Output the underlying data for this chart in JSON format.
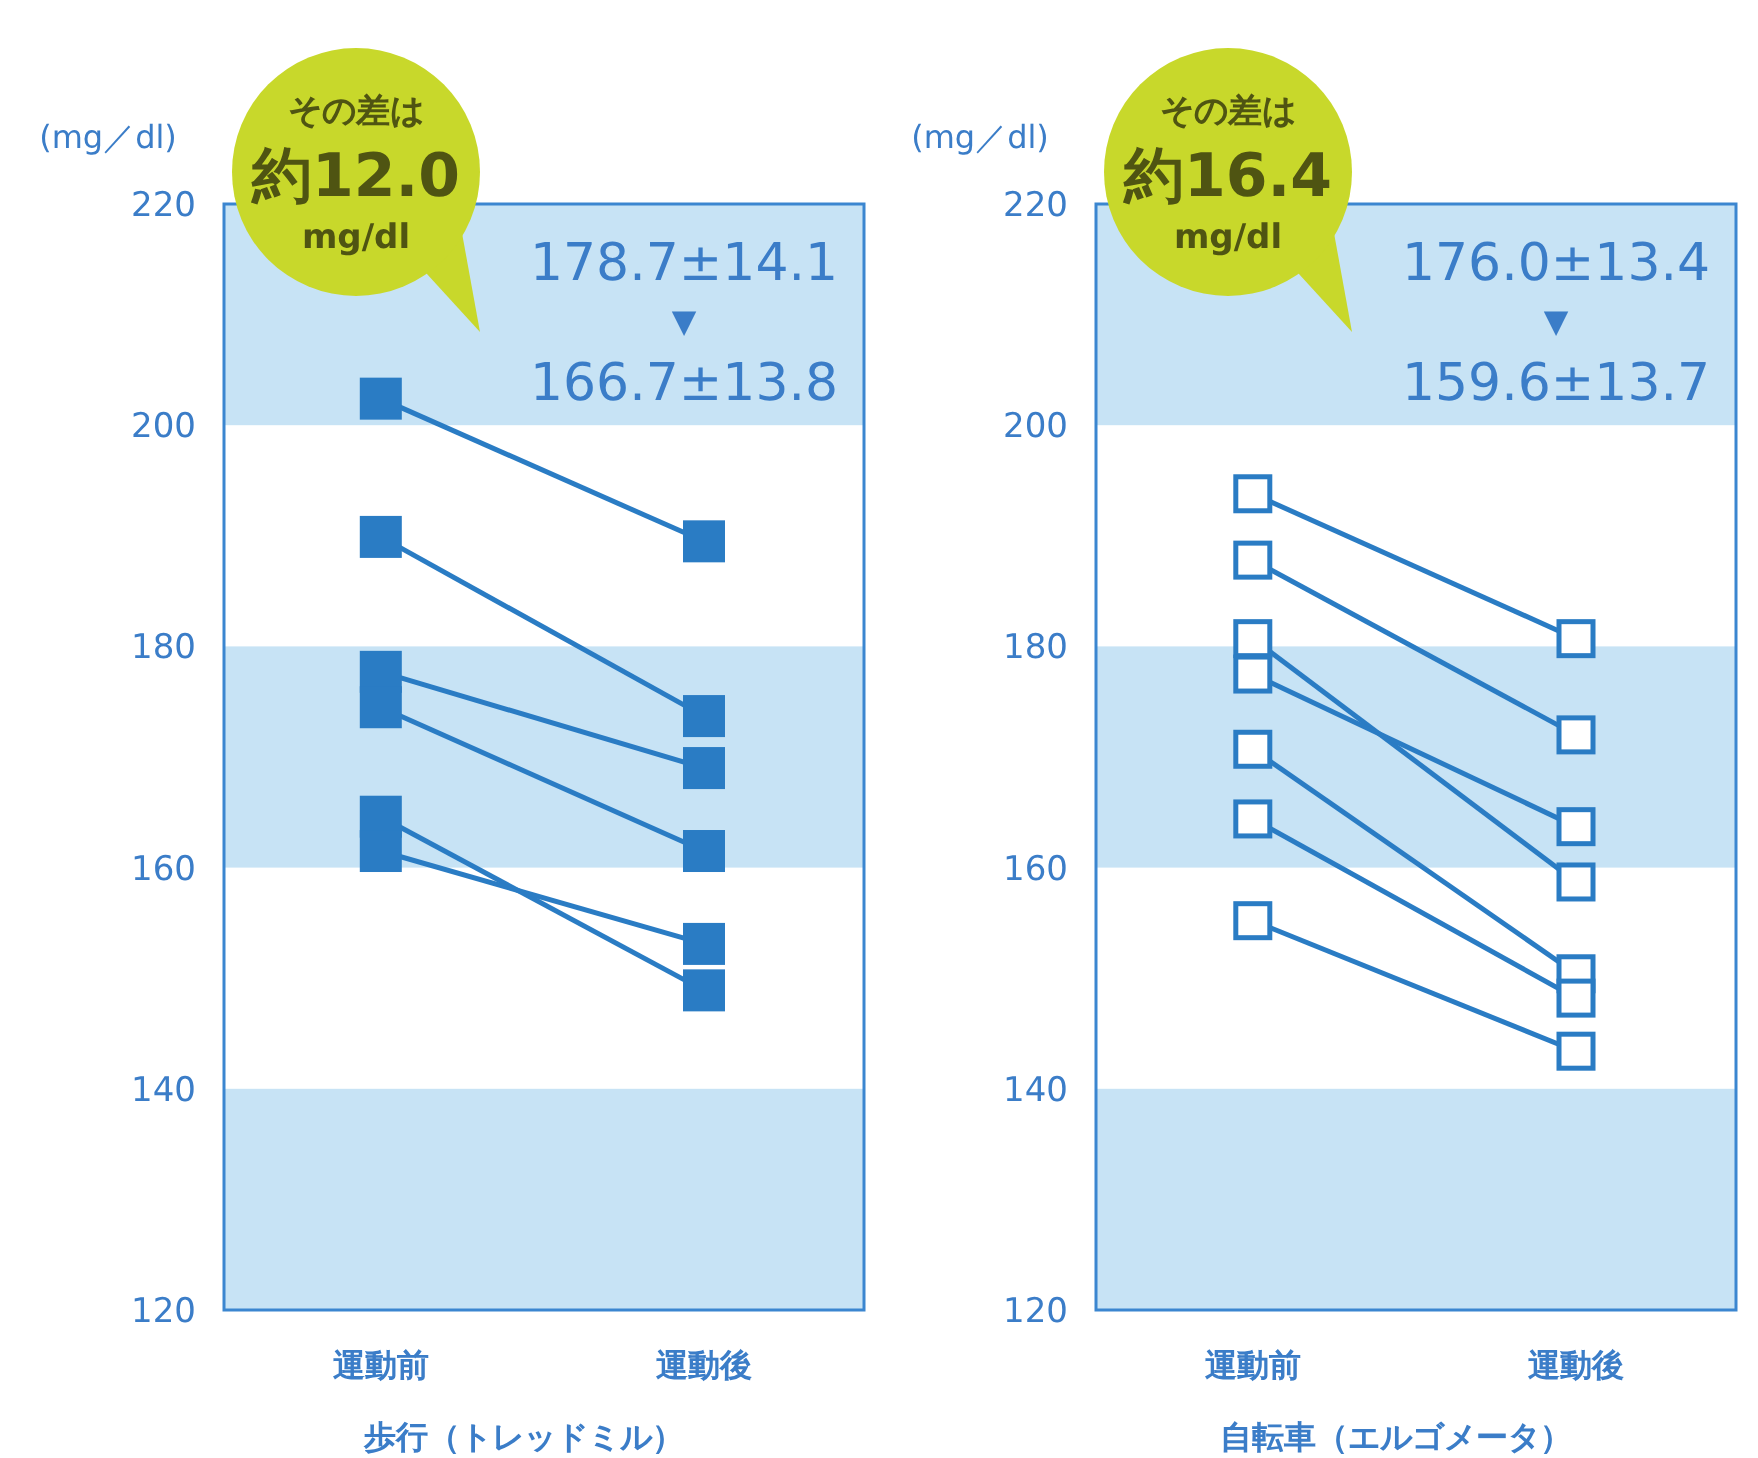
{
  "chart_data": [
    {
      "type": "line",
      "categories": [
        "運動前",
        "運動後"
      ],
      "xlabel": "歩行（トレッドミル）",
      "ylabel": "(mg／dl)",
      "ylim": [
        120,
        220
      ],
      "yticks": [
        120,
        140,
        160,
        180,
        200,
        220
      ],
      "marker": "square",
      "line_style": "solid",
      "grid": false,
      "bands": [
        {
          "axis": "y",
          "from": 200,
          "to": 220,
          "color": "#c7e3f5"
        },
        {
          "axis": "y",
          "from": 160,
          "to": 180,
          "color": "#c7e3f5"
        },
        {
          "axis": "y",
          "from": 120,
          "to": 140,
          "color": "#c7e3f5"
        }
      ],
      "annotations": [
        "その差は",
        "約12.0",
        "mg/dl",
        "178.7±14.1",
        "▼",
        "166.7±13.8"
      ],
      "series": [
        {
          "color": "#2a7cc4",
          "values": [
            202.4,
            189.5
          ]
        },
        {
          "color": "#2a7cc4",
          "values": [
            189.9,
            173.7
          ]
        },
        {
          "color": "#2a7cc4",
          "values": [
            177.7,
            169.0
          ]
        },
        {
          "color": "#2a7cc4",
          "values": [
            174.5,
            161.5
          ]
        },
        {
          "color": "#2a7cc4",
          "values": [
            164.6,
            148.9
          ]
        },
        {
          "color": "#2a7cc4",
          "values": [
            161.5,
            153.1
          ]
        }
      ]
    },
    {
      "type": "line",
      "categories": [
        "運動前",
        "運動後"
      ],
      "xlabel": "自転車（エルゴメータ）",
      "ylabel": "(mg／dl)",
      "ylim": [
        120,
        220
      ],
      "yticks": [
        120,
        140,
        160,
        180,
        200,
        220
      ],
      "marker": "square",
      "line_style": "solid",
      "grid": false,
      "bands": [
        {
          "axis": "y",
          "from": 200,
          "to": 220,
          "color": "#c7e3f5"
        },
        {
          "axis": "y",
          "from": 160,
          "to": 180,
          "color": "#c7e3f5"
        },
        {
          "axis": "y",
          "from": 120,
          "to": 140,
          "color": "#c7e3f5"
        }
      ],
      "annotations": [
        "その差は",
        "約16.4",
        "mg/dl",
        "176.0±13.4",
        "▼",
        "159.6±13.7"
      ],
      "series": [
        {
          "color": "#2a7cc4",
          "values": [
            193.8,
            180.7
          ]
        },
        {
          "color": "#2a7cc4",
          "values": [
            187.8,
            172.0
          ]
        },
        {
          "color": "#2a7cc4",
          "values": [
            180.7,
            158.7
          ]
        },
        {
          "color": "#2a7cc4",
          "values": [
            177.5,
            163.7
          ]
        },
        {
          "color": "#2a7cc4",
          "values": [
            170.7,
            150.4
          ]
        },
        {
          "color": "#2a7cc4",
          "values": [
            164.4,
            148.2
          ]
        },
        {
          "color": "#2a7cc4",
          "values": [
            155.2,
            143.4
          ]
        }
      ]
    }
  ]
}
